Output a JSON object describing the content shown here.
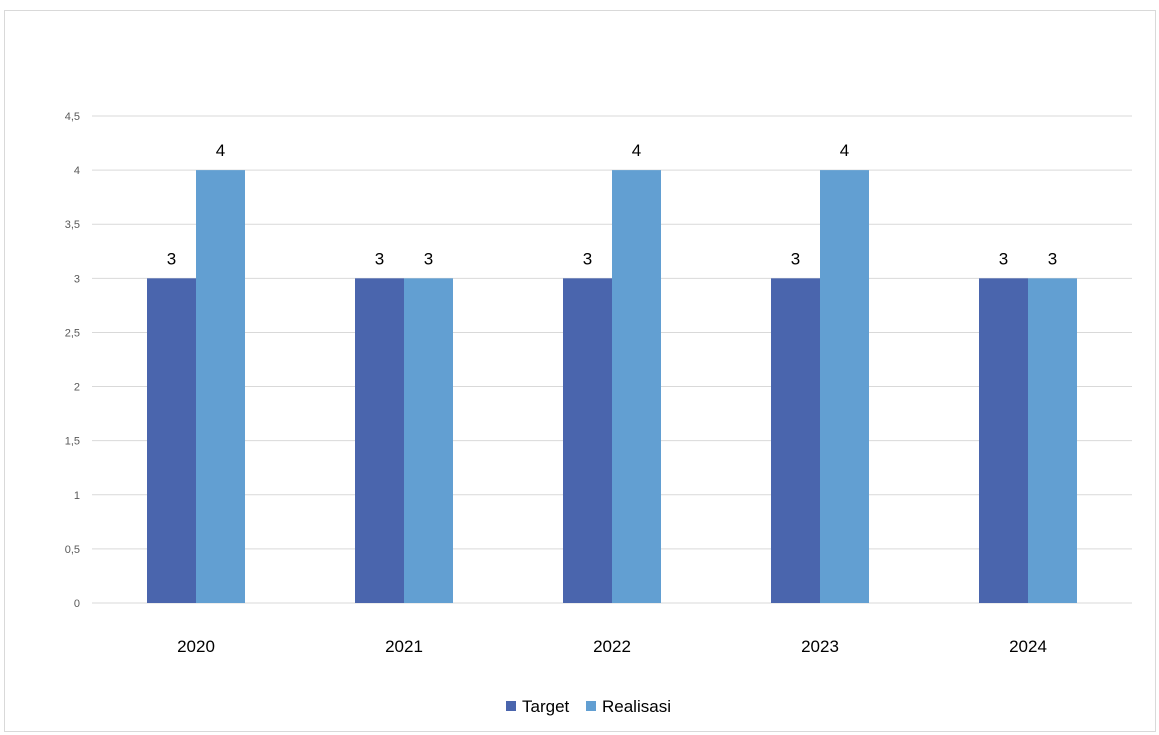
{
  "chart_data": {
    "type": "bar",
    "categories": [
      "2020",
      "2021",
      "2022",
      "2023",
      "2024"
    ],
    "series": [
      {
        "name": "Target",
        "values": [
          3,
          3,
          3,
          3,
          3
        ],
        "color": "#4a65ad"
      },
      {
        "name": "Realisasi",
        "values": [
          4,
          3,
          4,
          4,
          3
        ],
        "color": "#629fd2"
      }
    ],
    "ylim": [
      0,
      4.5
    ],
    "yticks": [
      "0",
      "0,5",
      "1",
      "1,5",
      "2",
      "2,5",
      "3",
      "3,5",
      "4",
      "4,5"
    ],
    "ytick_values": [
      0,
      0.5,
      1,
      1.5,
      2,
      2.5,
      3,
      3.5,
      4,
      4.5
    ],
    "data_labels": true,
    "grid": true,
    "legend": "bottom-center"
  }
}
